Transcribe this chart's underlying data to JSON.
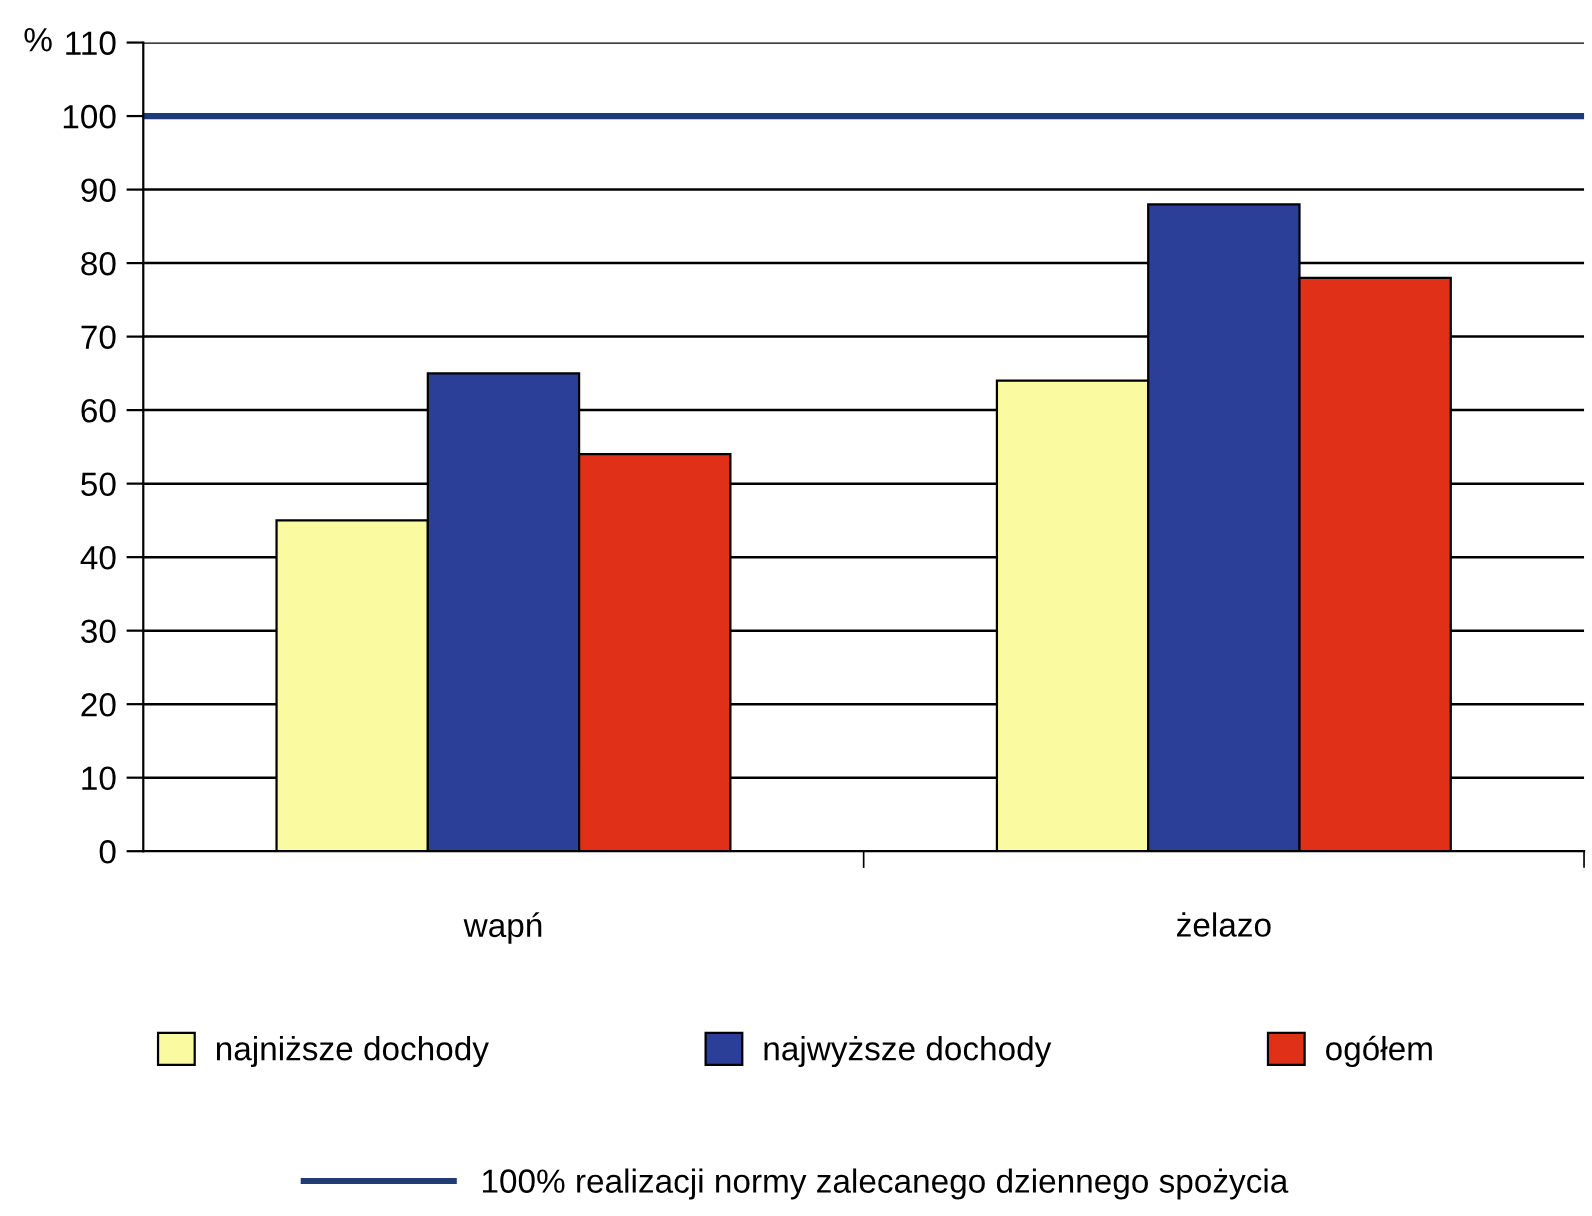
{
  "chart_data": {
    "type": "bar",
    "categories": [
      "wapń",
      "żelazo"
    ],
    "series": [
      {
        "name": "najniższe dochody",
        "color": "#fafaa0",
        "values": [
          45,
          64
        ]
      },
      {
        "name": "najwyższe dochody",
        "color": "#2b3f99",
        "values": [
          65,
          88
        ]
      },
      {
        "name": "ogółem",
        "color": "#e03018",
        "values": [
          54,
          78
        ]
      }
    ],
    "ylabel": "%",
    "ylim": [
      0,
      110
    ],
    "yticks": [
      0,
      10,
      20,
      30,
      40,
      50,
      60,
      70,
      80,
      90,
      100,
      110
    ],
    "grid": "y",
    "legend": "bottom",
    "ref_lines": [
      {
        "axis": "y",
        "value": 100,
        "label": "100% realizacji normy zalecanego dziennego spożycia",
        "color": "#1f3c78",
        "line_style": "solid"
      }
    ]
  }
}
